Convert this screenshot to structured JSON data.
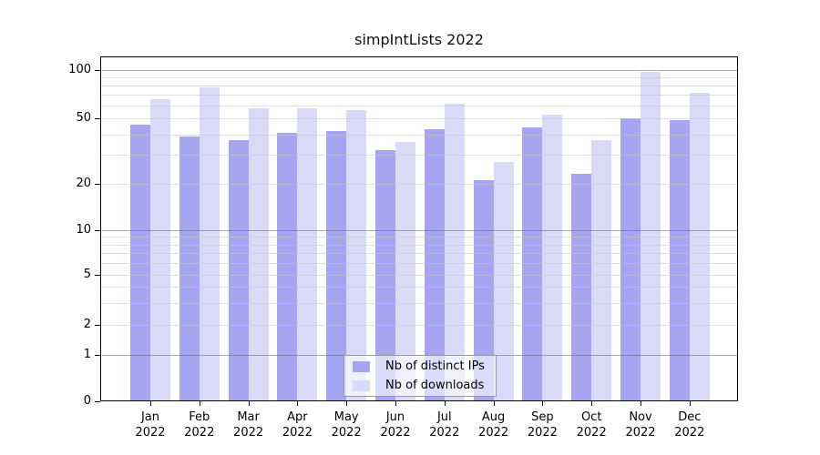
{
  "chart_data": {
    "type": "bar",
    "title": "simpIntLists 2022",
    "categories": [
      "Jan",
      "Feb",
      "Mar",
      "Apr",
      "May",
      "Jun",
      "Jul",
      "Aug",
      "Sep",
      "Oct",
      "Nov",
      "Dec"
    ],
    "category_year": "2022",
    "series": [
      {
        "name": "Nb of distinct IPs",
        "color": "#a5a5f2",
        "values": [
          46,
          39,
          37,
          41,
          42,
          32,
          43,
          21,
          44,
          23,
          50,
          49
        ]
      },
      {
        "name": "Nb of downloads",
        "color": "#d9d9f8",
        "values": [
          66,
          78,
          58,
          58,
          56,
          36,
          62,
          27,
          53,
          37,
          98,
          72
        ]
      }
    ],
    "xlabel": "",
    "ylabel": "",
    "y_axis": {
      "scale": "log-like-with-zero",
      "major_ticks": [
        0,
        1,
        2,
        5,
        10,
        20,
        50,
        100
      ],
      "minor_gridlines": [
        3,
        4,
        6,
        7,
        8,
        9,
        30,
        40,
        60,
        70,
        80,
        90
      ],
      "decade_gridlines": [
        1,
        10,
        100
      ]
    },
    "legend": {
      "position": "inside-bottom-center",
      "entries": [
        "Nb of distinct IPs",
        "Nb of downloads"
      ]
    },
    "grid": true,
    "colors": {
      "axis": "#000000",
      "decade_gridline": "rgba(100,100,100,0.55)",
      "minor_gridline": "rgba(198,198,198,0.55)",
      "background": "#ffffff"
    }
  }
}
